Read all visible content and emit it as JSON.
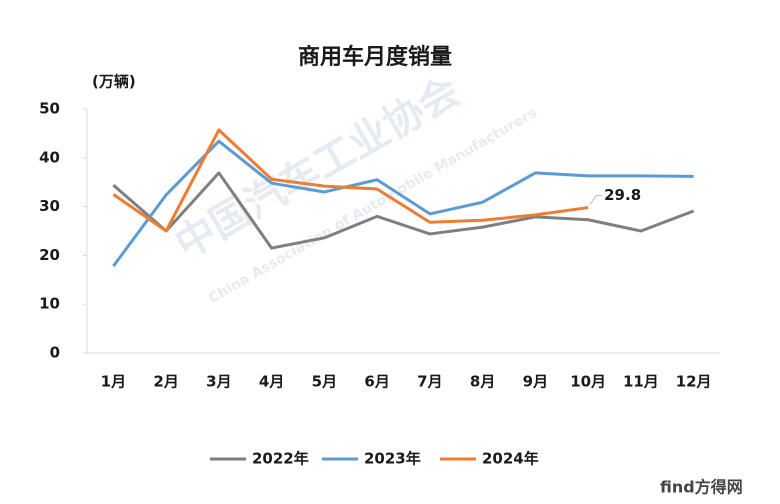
{
  "chart_data": {
    "type": "line",
    "title": "商用车月度销量",
    "y_label": "(万辆)",
    "categories": [
      "1月",
      "2月",
      "3月",
      "4月",
      "5月",
      "6月",
      "7月",
      "8月",
      "9月",
      "10月",
      "11月",
      "12月"
    ],
    "series": [
      {
        "name": "2022年",
        "color": "#7f7f7f",
        "values": [
          34.4,
          25,
          36.9,
          21.5,
          23.6,
          28,
          24.4,
          25.8,
          27.9,
          27.3,
          25,
          29.1
        ]
      },
      {
        "name": "2023年",
        "color": "#5b9bd5",
        "values": [
          17.8,
          32.4,
          43.4,
          34.8,
          33,
          35.5,
          28.5,
          30.9,
          36.9,
          36.3,
          36.3,
          36.2
        ]
      },
      {
        "name": "2024年",
        "color": "#ed7d31",
        "values": [
          32.5,
          25,
          45.7,
          35.6,
          34.2,
          33.6,
          26.8,
          27.2,
          28.3,
          29.8,
          null,
          null
        ]
      }
    ],
    "ylim": [
      0,
      50
    ],
    "yticks": [
      0,
      10,
      20,
      30,
      40,
      50
    ],
    "grid": false,
    "legend": "bottom",
    "watermark": [
      "中国汽车工业协会",
      "China Association of Automobile Manufacturers",
      "find方得网"
    ]
  }
}
